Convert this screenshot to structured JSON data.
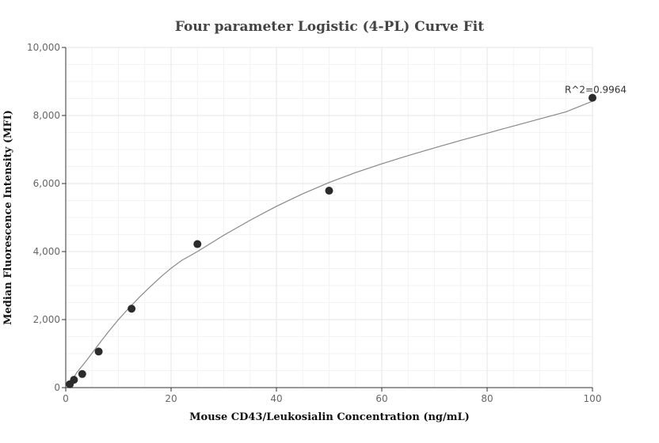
{
  "chart_data": {
    "type": "scatter",
    "title": "Four parameter Logistic (4-PL) Curve Fit",
    "xlabel": "Mouse CD43/Leukosialin Concentration (ng/mL)",
    "ylabel": "Median Fluorescence Intensity (MFI)",
    "xlim": [
      0,
      100
    ],
    "ylim": [
      0,
      10000
    ],
    "x_ticks": [
      0,
      20,
      40,
      60,
      80,
      100
    ],
    "y_ticks": [
      0,
      2000,
      4000,
      6000,
      8000,
      10000
    ],
    "x_tick_labels": [
      "0",
      "20",
      "40",
      "60",
      "80",
      "100"
    ],
    "y_tick_labels": [
      "0",
      "2,000",
      "4,000",
      "6,000",
      "8,000",
      "10,000"
    ],
    "grid": true,
    "legend": "none",
    "series": [
      {
        "x": [
          0.78,
          1.56,
          3.13,
          6.25,
          12.5,
          25,
          50,
          100
        ],
        "y": [
          100,
          230,
          400,
          1060,
          2320,
          4220,
          5790,
          8520
        ]
      }
    ],
    "fit_curve": {
      "x": [
        0.78,
        2,
        4,
        6,
        8,
        10,
        12,
        14,
        16,
        18,
        20,
        22,
        25,
        30,
        35,
        40,
        45,
        50,
        55,
        60,
        65,
        70,
        75,
        80,
        85,
        90,
        95,
        100
      ],
      "y": [
        100,
        420,
        810,
        1220,
        1620,
        2000,
        2340,
        2660,
        2960,
        3250,
        3510,
        3740,
        4000,
        4480,
        4920,
        5330,
        5700,
        6030,
        6320,
        6580,
        6820,
        7050,
        7270,
        7480,
        7690,
        7900,
        8110,
        8420
      ]
    },
    "annotations": [
      {
        "text": "R^2=0.9964",
        "x": 100,
        "y": 8520
      }
    ],
    "colors": {
      "points": "#2b2b2b",
      "curve": "#888888",
      "grid": "#e6e6e6"
    }
  }
}
